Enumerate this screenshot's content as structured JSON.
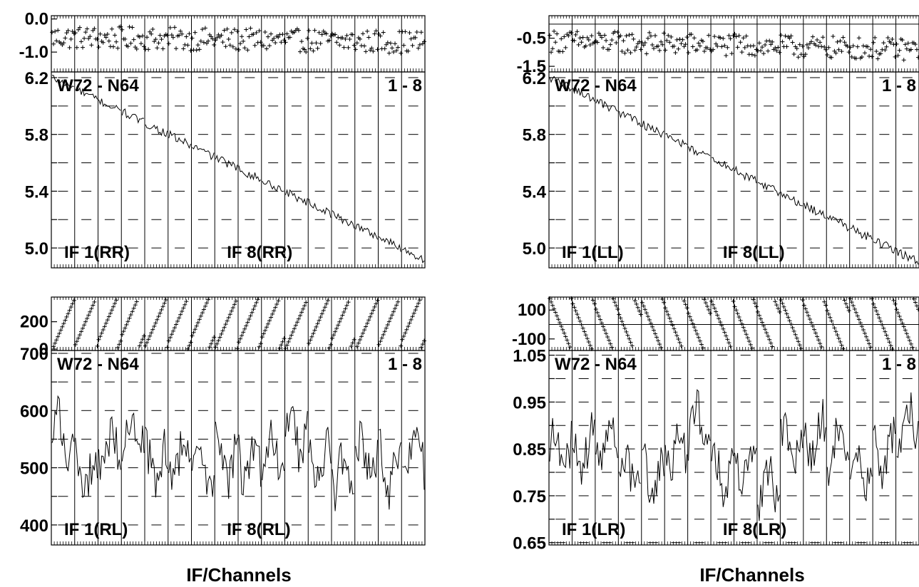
{
  "xlabel": "IF/Channels",
  "chart_data": [
    {
      "type": "line",
      "panel": "RR",
      "source": "W72 - N64",
      "range_label": "1 - 8",
      "if_labels": [
        "IF 1(RR)",
        "IF 8(RR)"
      ],
      "xlabel": "IF/Channels",
      "phase": {
        "ylim": [
          -1.6,
          0.1
        ],
        "yticks": [
          0.0,
          -1.0
        ],
        "ytick_labels": [
          "0.0",
          "-1.0"
        ],
        "center": -0.55,
        "spread": 0.35,
        "trend": -0.15
      },
      "amplitude": {
        "ylim": [
          4.86,
          6.24
        ],
        "yticks": [
          6.2,
          5.8,
          5.4,
          5.0
        ],
        "ytick_labels": [
          "6.2",
          "5.8",
          "5.4",
          "5.0"
        ],
        "start": 6.2,
        "end": 4.92,
        "noise": 0.03
      }
    },
    {
      "type": "line",
      "panel": "LL",
      "source": "W72 - N64",
      "range_label": "1 - 8",
      "if_labels": [
        "IF 1(LL)",
        "IF 8(LL)"
      ],
      "xlabel": "IF/Channels",
      "phase": {
        "ylim": [
          -1.7,
          0.3
        ],
        "yticks": [
          -0.5,
          -1.5
        ],
        "ytick_labels": [
          "-0.5",
          "-1.5"
        ],
        "refline": 0.0,
        "center": -0.6,
        "spread": 0.4,
        "trend": -0.3
      },
      "amplitude": {
        "ylim": [
          4.86,
          6.24
        ],
        "yticks": [
          6.2,
          5.8,
          5.4,
          5.0
        ],
        "ytick_labels": [
          "6.2",
          "5.8",
          "5.4",
          "5.0"
        ],
        "start": 6.2,
        "end": 4.9,
        "noise": 0.03
      }
    },
    {
      "type": "line",
      "panel": "RL",
      "source": "W72 - N64",
      "range_label": "1 - 8",
      "if_labels": [
        "IF 1(RL)",
        "IF 8(RL)"
      ],
      "xlabel": "IF/Channels",
      "phase": {
        "ylim": [
          -10,
          380
        ],
        "yticks": [
          200,
          0
        ],
        "ytick_labels": [
          "200",
          "0"
        ],
        "wrap": "up"
      },
      "amplitude": {
        "ylim": [
          365,
          705
        ],
        "yticks": [
          700,
          600,
          500,
          400
        ],
        "ytick_labels": [
          "700",
          "600",
          "500",
          "400"
        ],
        "base": 545,
        "noise": 45
      }
    },
    {
      "type": "line",
      "panel": "LR",
      "source": "W72 - N64",
      "range_label": "1 - 8",
      "if_labels": [
        "IF 1(LR)",
        "IF 8(LR)"
      ],
      "xlabel": "IF/Channels",
      "phase": {
        "ylim": [
          -180,
          190
        ],
        "yticks": [
          100,
          -100
        ],
        "ytick_labels": [
          "100",
          "-100"
        ],
        "refline": 0,
        "wrap": "down"
      },
      "amplitude": {
        "ylim": [
          0.645,
          1.06
        ],
        "yticks": [
          1.05,
          0.95,
          0.85,
          0.75,
          0.65
        ],
        "ytick_labels": [
          "1.05",
          "0.95",
          "0.85",
          "0.75",
          "0.65"
        ],
        "base": 0.84,
        "noise": 0.05
      }
    }
  ]
}
